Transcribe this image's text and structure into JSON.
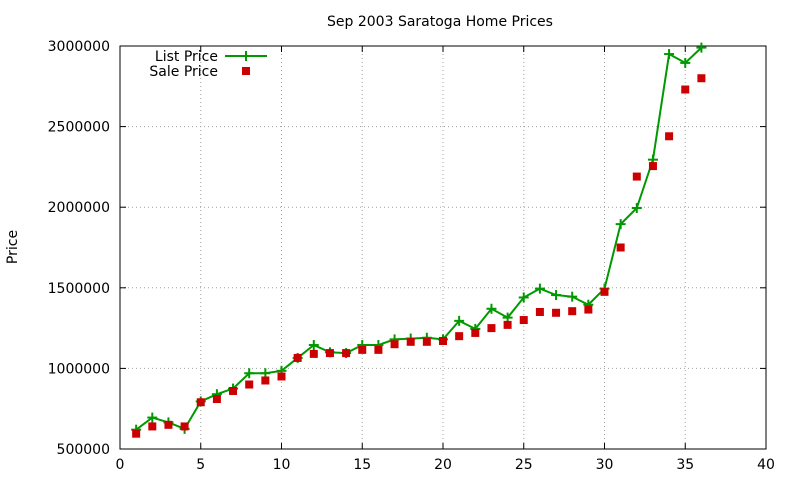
{
  "chart_data": {
    "type": "line",
    "title": "Sep 2003 Saratoga Home Prices",
    "xlabel": "",
    "ylabel": "Price",
    "xlim": [
      0,
      40
    ],
    "ylim": [
      500000,
      3000000
    ],
    "xticks": [
      0,
      5,
      10,
      15,
      20,
      25,
      30,
      35,
      40
    ],
    "yticks": [
      500000,
      1000000,
      1500000,
      2000000,
      2500000,
      3000000
    ],
    "grid": true,
    "legend_position": "top-left",
    "series": [
      {
        "name": "List Price",
        "style": "line-points",
        "marker": "plus",
        "color": "#009900",
        "x": [
          1,
          2,
          3,
          4,
          5,
          6,
          7,
          8,
          9,
          10,
          11,
          12,
          13,
          14,
          15,
          16,
          17,
          18,
          19,
          20,
          21,
          22,
          23,
          24,
          25,
          26,
          27,
          28,
          29,
          30,
          31,
          32,
          33,
          34,
          35,
          36
        ],
        "values": [
          620000,
          695000,
          665000,
          625000,
          795000,
          840000,
          875000,
          970000,
          970000,
          985000,
          1065000,
          1145000,
          1100000,
          1095000,
          1145000,
          1145000,
          1180000,
          1185000,
          1190000,
          1180000,
          1295000,
          1245000,
          1370000,
          1315000,
          1440000,
          1495000,
          1455000,
          1445000,
          1395000,
          1495000,
          1895000,
          1995000,
          2295000,
          2950000,
          2895000,
          2990000
        ]
      },
      {
        "name": "Sale Price",
        "style": "points",
        "marker": "square",
        "color": "#cc0000",
        "x": [
          1,
          2,
          3,
          4,
          5,
          6,
          7,
          8,
          9,
          10,
          11,
          12,
          13,
          14,
          15,
          16,
          17,
          18,
          19,
          20,
          21,
          22,
          23,
          24,
          25,
          26,
          27,
          28,
          29,
          30,
          31,
          32,
          33,
          34,
          35,
          36
        ],
        "values": [
          595000,
          640000,
          650000,
          640000,
          790000,
          810000,
          860000,
          900000,
          925000,
          950000,
          1065000,
          1090000,
          1095000,
          1095000,
          1115000,
          1115000,
          1150000,
          1165000,
          1165000,
          1170000,
          1200000,
          1220000,
          1250000,
          1270000,
          1300000,
          1350000,
          1345000,
          1355000,
          1365000,
          1475000,
          1750000,
          2190000,
          2255000,
          2440000,
          2730000,
          2800000
        ]
      }
    ]
  }
}
